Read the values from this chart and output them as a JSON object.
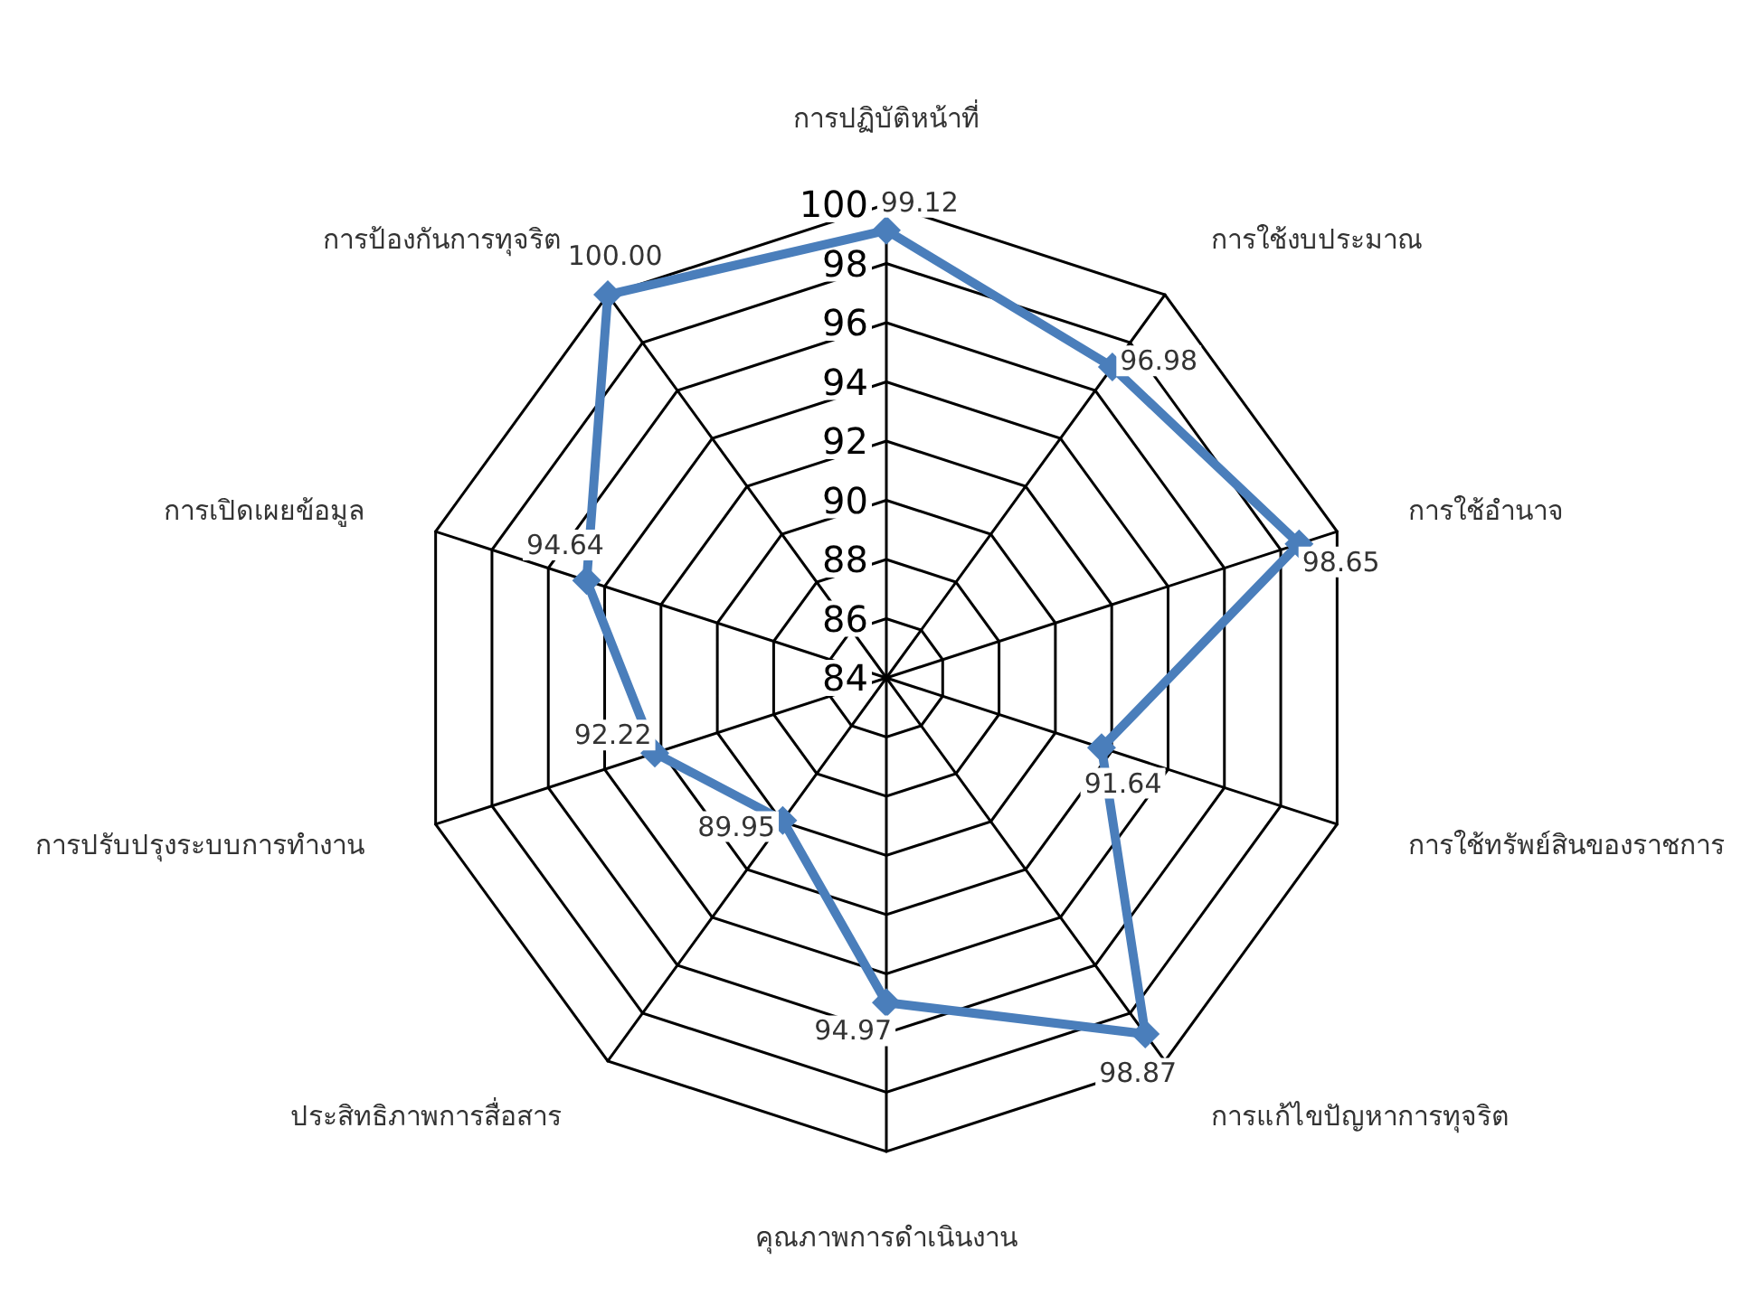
{
  "chart_data": {
    "type": "radar",
    "categories": [
      "การปฏิบัติหน้าที่",
      "การใช้งบประมาณ",
      "การใช้อำนาจ",
      "การใช้ทรัพย์สินของราชการ",
      "การแก้ไขปัญหาการทุจริต",
      "คุณภาพการดำเนินงาน",
      "ประสิทธิภาพการสื่อสาร",
      "การปรับปรุงระบบการทำงาน",
      "การเปิดเผยข้อมูล",
      "การป้องกันการทุจริต"
    ],
    "series": [
      {
        "color": "#4a7ebb",
        "values": [
          99.12,
          96.98,
          98.65,
          91.64,
          98.87,
          94.97,
          89.95,
          92.22,
          94.64,
          100.0
        ],
        "value_labels": [
          "99.12",
          "96.98",
          "98.65",
          "91.64",
          "98.87",
          "94.97",
          "89.95",
          "92.22",
          "94.64",
          "100.00"
        ]
      }
    ],
    "ylim": [
      84,
      100
    ],
    "yticks": [
      84,
      86,
      88,
      90,
      92,
      94,
      96,
      98,
      100
    ],
    "marker": "diamond",
    "line_style": "solid",
    "grid": true
  }
}
